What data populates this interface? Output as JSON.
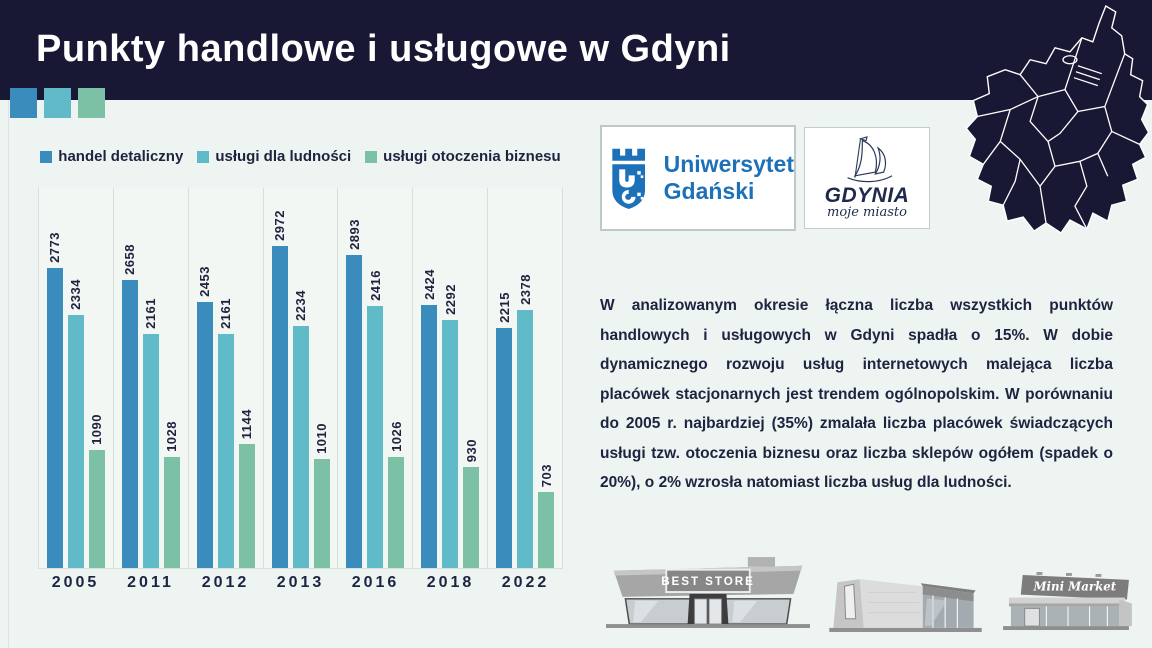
{
  "header": {
    "title": "Punkty handlowe i usługowe w Gdyni"
  },
  "accent_squares": [
    "#3a8cbd",
    "#60bac7",
    "#7cc1a6"
  ],
  "colors": {
    "navy": "#181834",
    "page_bg": "#eef4f1",
    "chart_line": "#d8dfdc",
    "text_navy": "#1f2340"
  },
  "chart_data": {
    "type": "bar",
    "title": "",
    "categories": [
      "2005",
      "2011",
      "2012",
      "2013",
      "2016",
      "2018",
      "2022"
    ],
    "series": [
      {
        "name": "handel detaliczny",
        "color": "#3a8cbd",
        "values": [
          2773,
          2658,
          2453,
          2972,
          2893,
          2424,
          2215
        ]
      },
      {
        "name": "usługi dla ludności",
        "color": "#60bac7",
        "values": [
          2334,
          2161,
          2161,
          2234,
          2416,
          2292,
          2378
        ]
      },
      {
        "name": "usługi otoczenia biznesu",
        "color": "#7cc1a6",
        "values": [
          1090,
          1028,
          1144,
          1010,
          1026,
          930,
          703
        ]
      }
    ],
    "xlabel": "",
    "ylabel": "",
    "ylim": [
      0,
      2972
    ],
    "grid": "vertical group separators, baseline only",
    "legend_position": "top",
    "value_labels": "rotated 90° above each bar"
  },
  "logos": {
    "university": {
      "line1": "Uniwersytet",
      "line2": "Gdański"
    },
    "city": {
      "name": "GDYNIA",
      "tagline": "moje miasto"
    }
  },
  "paragraph": "W analizowanym okresie łączna liczba wszystkich punktów handlowych i usługowych w Gdyni spadła o 15%. W dobie dynamicznego rozwoju usług internetowych malejąca liczba placówek stacjonarnych jest trendem ogólnopolskim. W porównaniu do 2005 r. najbardziej (35%) zmalała liczba placówek świadczących usługi tzw. otoczenia biznesu oraz liczba sklepów ogółem (spadek o 20%), o 2% wzrosła natomiast liczba usług dla ludności.",
  "stores": {
    "store1_sign": "BEST STORE",
    "store3_sign": "Mini Market"
  }
}
